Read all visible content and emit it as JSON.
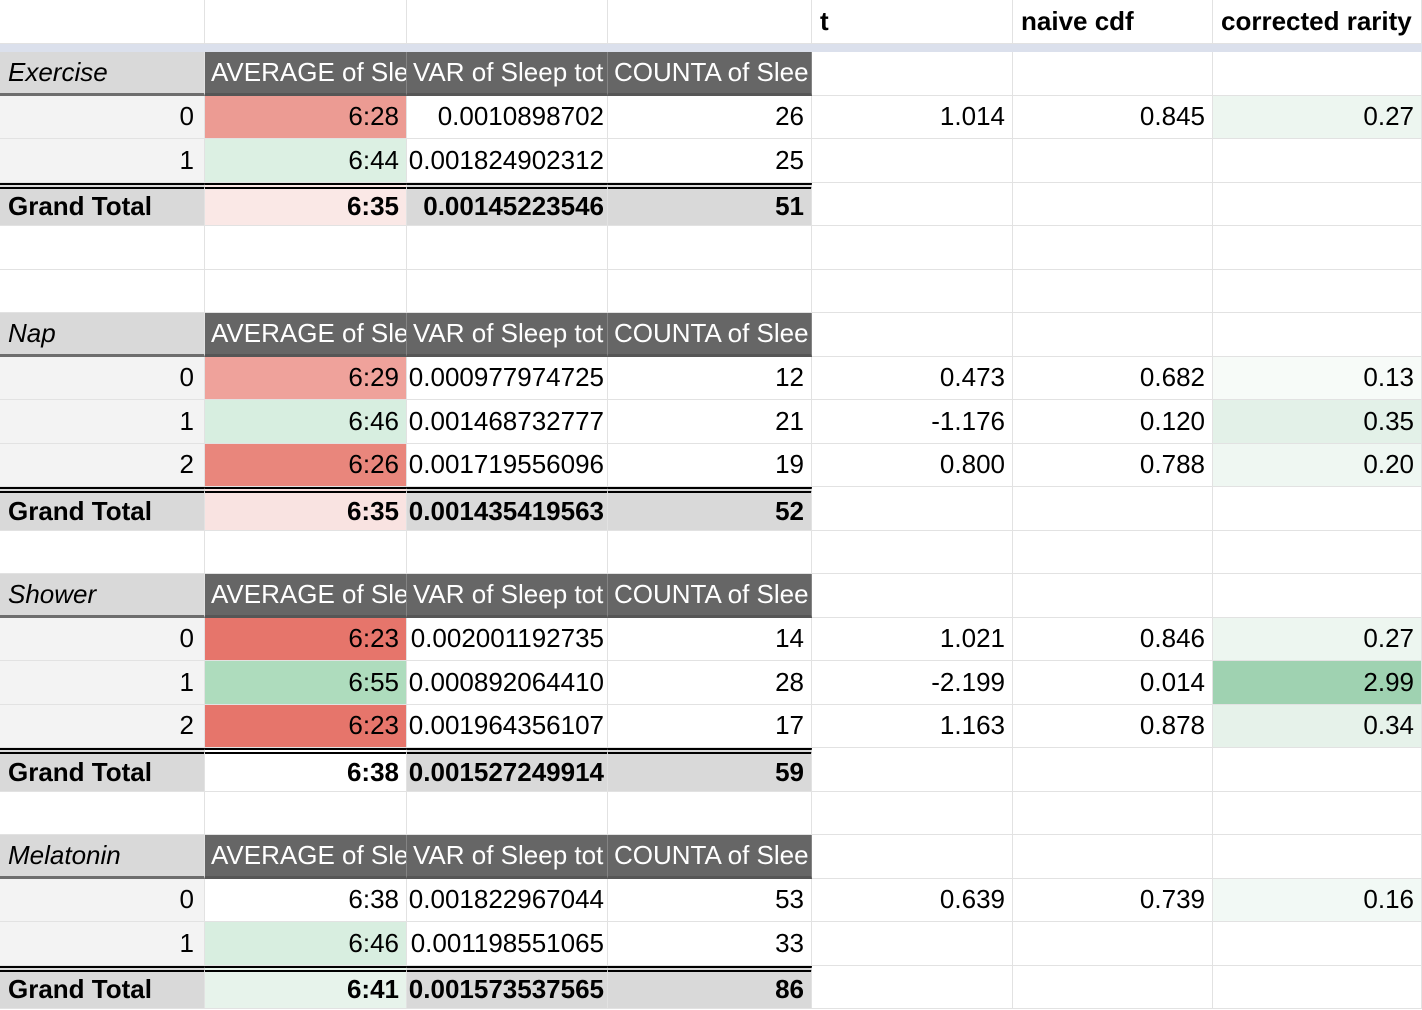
{
  "sheet": {
    "top_header": {
      "t": "t",
      "naive_cdf": "naive cdf",
      "corrected_rarity": "corrected rarity"
    },
    "pivot_headers": [
      "AVERAGE of Sle",
      "VAR of Sleep tot",
      "COUNTA of Slee"
    ],
    "grand_total_label": "Grand Total",
    "tables": [
      {
        "name": "Exercise",
        "rows": [
          {
            "label": "0",
            "avg": "6:28",
            "avg_bg": "#ec9b93",
            "var": "0.0010898702",
            "count": "26",
            "t": "1.014",
            "cdf": "0.845",
            "rarity": "0.27",
            "rarity_bg": "#edf6f0"
          },
          {
            "label": "1",
            "avg": "6:44",
            "avg_bg": "#dcf0e3",
            "var": "0.001824902312",
            "count": "25"
          }
        ],
        "grand_total": {
          "avg": "6:35",
          "avg_bg": "#fae8e6",
          "var": "0.00145223546",
          "count": "51"
        },
        "blank_rows_after": 2
      },
      {
        "name": "Nap",
        "rows": [
          {
            "label": "0",
            "avg": "6:29",
            "avg_bg": "#efa29b",
            "var": "0.000977974725",
            "count": "12",
            "t": "0.473",
            "cdf": "0.682",
            "rarity": "0.13",
            "rarity_bg": "#f7fbf8"
          },
          {
            "label": "1",
            "avg": "6:46",
            "avg_bg": "#d7eee0",
            "var": "0.001468732777",
            "count": "21",
            "t": "-1.176",
            "cdf": "0.120",
            "rarity": "0.35",
            "rarity_bg": "#e3f1e8"
          },
          {
            "label": "2",
            "avg": "6:26",
            "avg_bg": "#e9867c",
            "var": "0.001719556096",
            "count": "19",
            "t": "0.800",
            "cdf": "0.788",
            "rarity": "0.20",
            "rarity_bg": "#eff7f2"
          }
        ],
        "grand_total": {
          "avg": "6:35",
          "avg_bg": "#f9e3e1",
          "var": "0.001435419563",
          "count": "52"
        },
        "blank_rows_after": 1
      },
      {
        "name": "Shower",
        "rows": [
          {
            "label": "0",
            "avg": "6:23",
            "avg_bg": "#e6756b",
            "var": "0.002001192735",
            "count": "14",
            "t": "1.021",
            "cdf": "0.846",
            "rarity": "0.27",
            "rarity_bg": "#edf6f0"
          },
          {
            "label": "1",
            "avg": "6:55",
            "avg_bg": "#aedcbd",
            "var": "0.000892064410",
            "count": "28",
            "t": "-2.199",
            "cdf": "0.014",
            "rarity": "2.99",
            "rarity_bg": "#9fd2b1"
          },
          {
            "label": "2",
            "avg": "6:23",
            "avg_bg": "#e6756b",
            "var": "0.001964356107",
            "count": "17",
            "t": "1.163",
            "cdf": "0.878",
            "rarity": "0.34",
            "rarity_bg": "#e6f2ea"
          }
        ],
        "grand_total": {
          "avg": "6:38",
          "var": "0.001527249914",
          "count": "59"
        },
        "blank_rows_after": 1
      },
      {
        "name": "Melatonin",
        "rows": [
          {
            "label": "0",
            "avg": "6:38",
            "var": "0.001822967044",
            "count": "53",
            "t": "0.639",
            "cdf": "0.739",
            "rarity": "0.16",
            "rarity_bg": "#f2f9f5"
          },
          {
            "label": "1",
            "avg": "6:46",
            "avg_bg": "#d8eee0",
            "var": "0.001198551065",
            "count": "33"
          }
        ],
        "grand_total": {
          "avg": "6:41",
          "avg_bg": "#e7f3eb",
          "var": "0.001573537565",
          "count": "86"
        },
        "blank_rows_after": 0
      }
    ],
    "colors": {
      "pivot_header_bg": "#666666",
      "pivot_label_bg": "#d9d9d9",
      "row_label_bg": "#f3f3f3",
      "grand_total_bg": "#d9d9d9",
      "gridline": "#e2e2e2",
      "frozen_divider": "#dbe0ec",
      "strong_red": "#e6756b",
      "strong_green": "#aedcbd"
    }
  }
}
